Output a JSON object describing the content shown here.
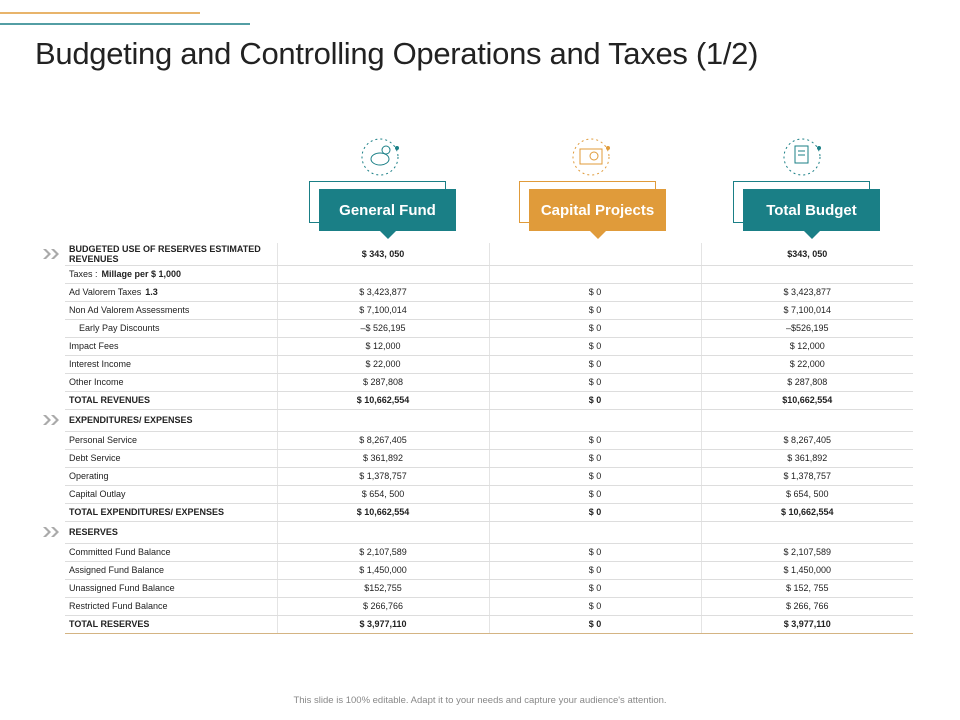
{
  "title": "Budgeting and Controlling Operations and Taxes (1/2)",
  "columns": [
    "General Fund",
    "Capital Projects",
    "Total Budget"
  ],
  "rows": [
    {
      "label": "BUDGETED USE OF RESERVES ESTIMATED REVENUES",
      "kind": "section",
      "values": [
        "$ 343, 050",
        null,
        "$343, 050"
      ]
    },
    {
      "label": "Taxes :",
      "note": "Millage per $ 1,000",
      "kind": "row",
      "values": [
        null,
        null,
        null
      ]
    },
    {
      "label": "Ad Valorem Taxes",
      "note": "1.3",
      "kind": "row",
      "values": [
        "$ 3,423,877",
        "$ 0",
        "$ 3,423,877"
      ]
    },
    {
      "label": "Non Ad Valorem Assessments",
      "kind": "row",
      "values": [
        "$ 7,100,014",
        "$ 0",
        "$ 7,100,014"
      ]
    },
    {
      "label": "Early Pay Discounts",
      "kind": "indent",
      "values": [
        "–$ 526,195",
        "$ 0",
        "–$526,195"
      ]
    },
    {
      "label": "Impact Fees",
      "kind": "row",
      "values": [
        "$ 12,000",
        "$ 0",
        "$ 12,000"
      ]
    },
    {
      "label": "Interest Income",
      "kind": "row",
      "values": [
        "$ 22,000",
        "$ 0",
        "$ 22,000"
      ]
    },
    {
      "label": "Other Income",
      "kind": "row",
      "values": [
        "$ 287,808",
        "$ 0",
        "$ 287,808"
      ]
    },
    {
      "label": "TOTAL REVENUES",
      "kind": "total",
      "values": [
        "$ 10,662,554",
        "$ 0",
        "$10,662,554"
      ]
    },
    {
      "label": "EXPENDITURES/ EXPENSES",
      "kind": "section",
      "values": [
        null,
        null,
        null
      ]
    },
    {
      "label": "Personal Service",
      "kind": "row",
      "values": [
        "$ 8,267,405",
        "$ 0",
        "$ 8,267,405"
      ]
    },
    {
      "label": "Debt Service",
      "kind": "row",
      "values": [
        "$ 361,892",
        "$ 0",
        "$ 361,892"
      ]
    },
    {
      "label": "Operating",
      "kind": "row",
      "values": [
        "$ 1,378,757",
        "$ 0",
        "$ 1,378,757"
      ]
    },
    {
      "label": "Capital Outlay",
      "kind": "row",
      "values": [
        "$ 654, 500",
        "$ 0",
        "$ 654, 500"
      ]
    },
    {
      "label": "TOTAL EXPENDITURES/ EXPENSES",
      "kind": "total",
      "values": [
        "$ 10,662,554",
        "$ 0",
        "$ 10,662,554"
      ]
    },
    {
      "label": "RESERVES",
      "kind": "section",
      "values": [
        null,
        null,
        null
      ]
    },
    {
      "label": "Committed Fund Balance",
      "kind": "row",
      "values": [
        "$ 2,107,589",
        "$ 0",
        "$ 2,107,589"
      ]
    },
    {
      "label": "Assigned Fund Balance",
      "kind": "row",
      "values": [
        "$ 1,450,000",
        "$ 0",
        "$ 1,450,000"
      ]
    },
    {
      "label": "Unassigned Fund Balance",
      "kind": "row",
      "values": [
        "$152,755",
        "$ 0",
        "$ 152, 755"
      ]
    },
    {
      "label": "Restricted Fund Balance",
      "kind": "row",
      "values": [
        "$ 266,766",
        "$ 0",
        "$ 266, 766"
      ]
    },
    {
      "label": "TOTAL RESERVES",
      "kind": "total",
      "values": [
        "$ 3,977,110",
        "$ 0",
        "$ 3,977,110"
      ]
    }
  ],
  "footer": "This slide is 100% editable. Adapt it to your needs and capture your audience's attention."
}
